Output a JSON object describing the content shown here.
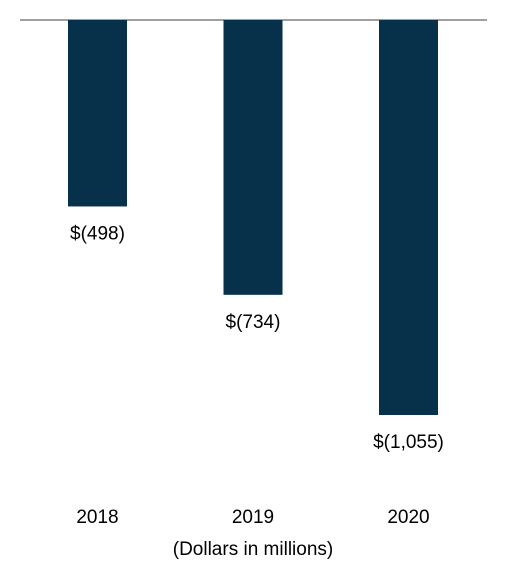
{
  "chart_data": {
    "type": "bar",
    "categories": [
      "2018",
      "2019",
      "2020"
    ],
    "values": [
      -498,
      -734,
      -1055
    ],
    "value_labels": [
      "$(498)",
      "$(734)",
      "$(1,055)"
    ],
    "color": "#07304a",
    "x_label": "(Dollars in millions)"
  }
}
